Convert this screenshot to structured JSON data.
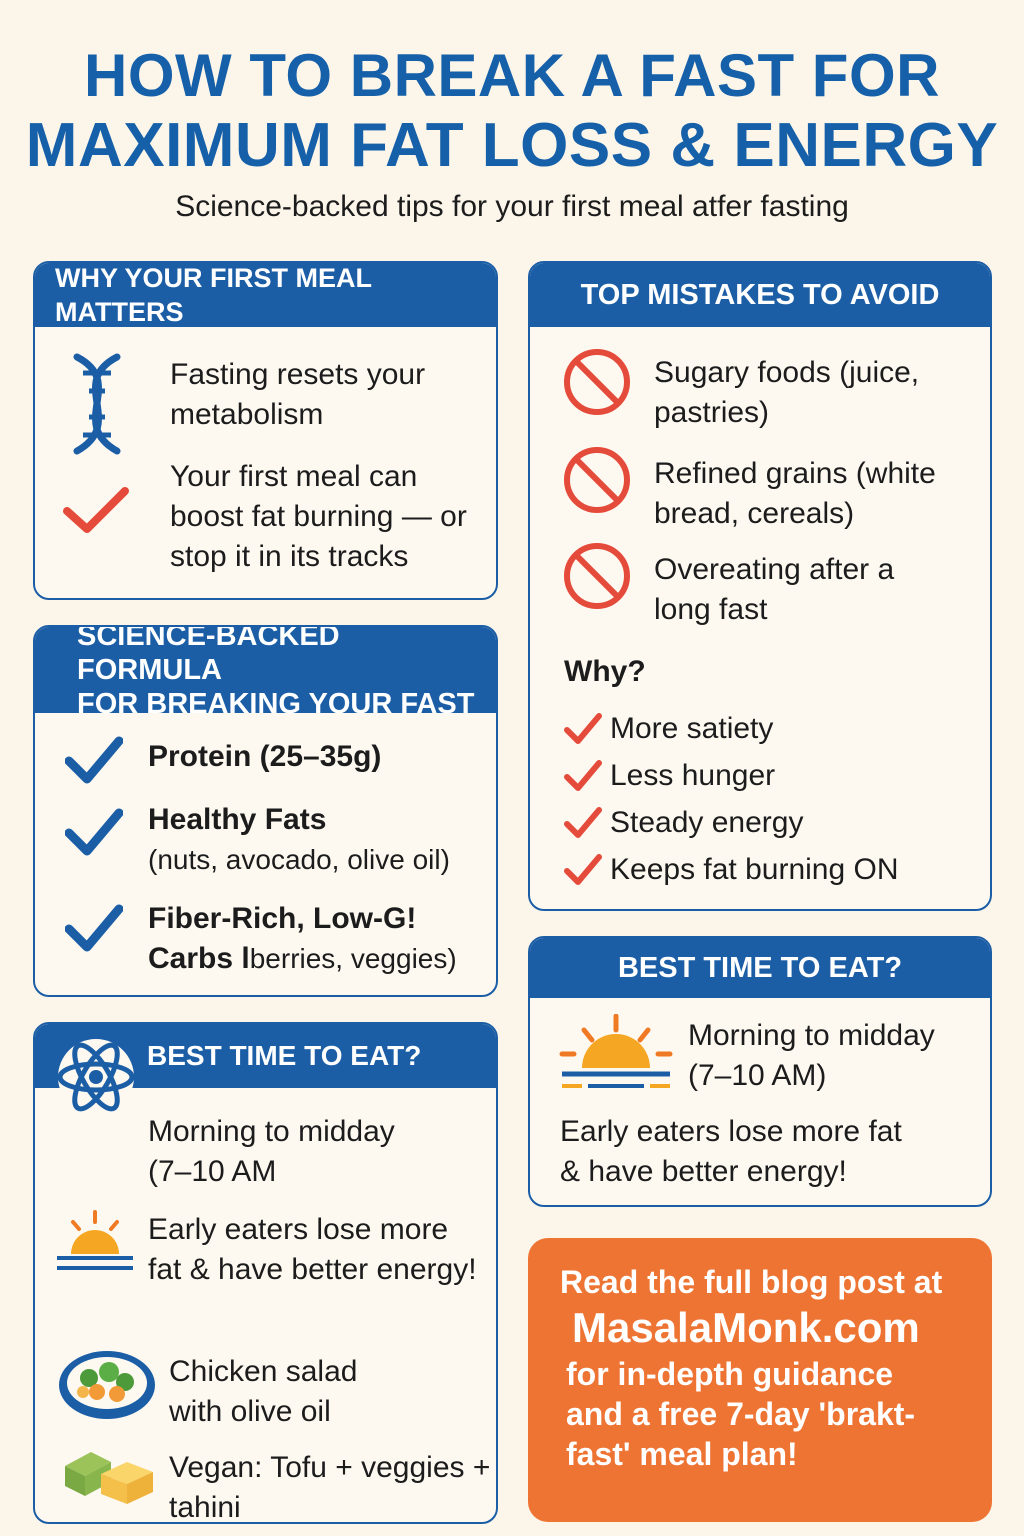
{
  "header": {
    "title_line1": "HOW TO BREAK A FAST FOR",
    "title_line2": "MAXIMUM FAT LOSS & ENERGY",
    "subtitle": "Science-backed tips for your first meal atfer fasting"
  },
  "why_card": {
    "heading": "WHY YOUR FIRST MEAL MATTERS",
    "item1": "Fasting resets your metabolism",
    "item2": "Your first meal can boost fat burning — or stop it in its tracks"
  },
  "formula_card": {
    "heading_line1": "SCIENCE-BACKED FORMULA",
    "heading_line2": "FOR BREAKING YOUR FAST",
    "item1_title": "Protein (25–35g)",
    "item2_title": "Healthy Fats",
    "item2_detail": "(nuts, avocado, olive oil)",
    "item3_title": "Fiber-Rich, Low-G!",
    "item3_title2": "Carbs l",
    "item3_detail": "berries, veggies)"
  },
  "left_time_card": {
    "heading": "BEST TIME TO EAT?",
    "time_line1": "Morning to midday",
    "time_line2": "(7–10 AM",
    "benefit": "Early eaters lose more fat & have better energy!",
    "meal1": "Chicken salad with olive oil",
    "meal2": "Vegan: Tofu + veggies + tahini"
  },
  "mistakes_card": {
    "heading": "TOP MISTAKES TO AVOID",
    "mistake1": "Sugary foods (juice, pastries)",
    "mistake2": "Refined grains (white bread, cereals)",
    "mistake3": "Overeating after a long fast",
    "why_label": "Why?",
    "reasons": [
      "More satiety",
      "Less hunger",
      "Steady energy",
      "Keeps fat burning ON"
    ]
  },
  "right_time_card": {
    "heading": "BEST TIME TO EAT?",
    "time_line1": "Morning to midday",
    "time_line2": "(7–10 AM)",
    "benefit_line1": "Early eaters lose more fat",
    "benefit_line2": "& have better energy!"
  },
  "cta": {
    "line1": "Read the full blog post at",
    "site": "MasalaMonk.com",
    "line3": "for in-depth guidance",
    "line4": "and a free 7-day 'brakt-",
    "line5": "fast' meal plan!"
  },
  "colors": {
    "brand_blue": "#1b5ea6",
    "accent_red": "#e54b3a",
    "cta_orange": "#ee7433",
    "background": "#fbf5ea"
  },
  "icons": [
    "dna-icon",
    "check-icon",
    "no-sign-icon",
    "atom-icon",
    "sunrise-icon",
    "salad-bowl-icon",
    "tofu-icon"
  ]
}
